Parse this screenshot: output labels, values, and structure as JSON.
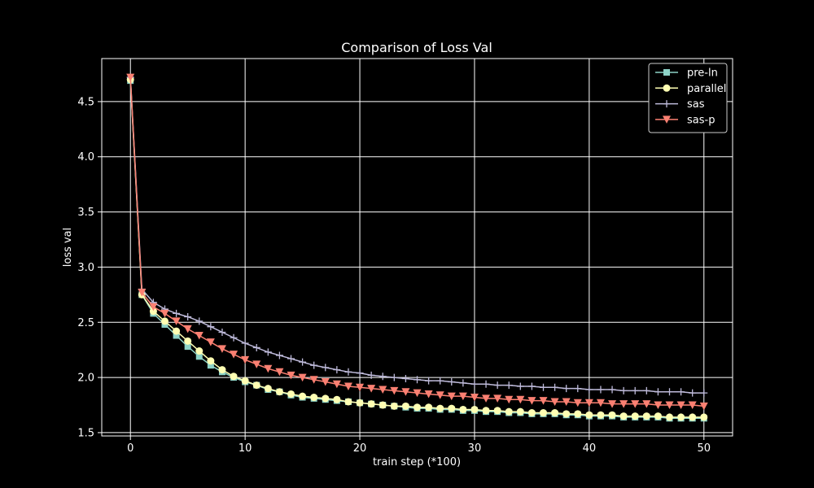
{
  "chart_data": {
    "type": "line",
    "title": "Comparison of Loss Val",
    "xlabel": "train step (*100)",
    "ylabel": "loss val",
    "xlim": [
      -2.5,
      52.5
    ],
    "ylim": [
      1.47,
      4.89
    ],
    "xticks": [
      0,
      10,
      20,
      30,
      40,
      50
    ],
    "yticks": [
      1.5,
      2.0,
      2.5,
      3.0,
      3.5,
      4.0,
      4.5
    ],
    "grid": true,
    "legend_position": "top-right",
    "x": [
      0,
      1,
      2,
      3,
      4,
      5,
      6,
      7,
      8,
      9,
      10,
      11,
      12,
      13,
      14,
      15,
      16,
      17,
      18,
      19,
      20,
      21,
      22,
      23,
      24,
      25,
      26,
      27,
      28,
      29,
      30,
      31,
      32,
      33,
      34,
      35,
      36,
      37,
      38,
      39,
      40,
      41,
      42,
      43,
      44,
      45,
      46,
      47,
      48,
      49,
      50
    ],
    "series": [
      {
        "name": "pre-ln",
        "color": "#8dd3c7",
        "marker": "square",
        "values": [
          4.69,
          2.75,
          2.58,
          2.48,
          2.38,
          2.28,
          2.19,
          2.11,
          2.05,
          2.0,
          1.96,
          1.93,
          1.89,
          1.87,
          1.84,
          1.82,
          1.81,
          1.8,
          1.79,
          1.78,
          1.77,
          1.76,
          1.75,
          1.74,
          1.73,
          1.72,
          1.72,
          1.71,
          1.71,
          1.7,
          1.7,
          1.69,
          1.69,
          1.68,
          1.68,
          1.67,
          1.67,
          1.67,
          1.66,
          1.66,
          1.65,
          1.65,
          1.65,
          1.64,
          1.64,
          1.64,
          1.64,
          1.63,
          1.63,
          1.63,
          1.63
        ]
      },
      {
        "name": "parallel",
        "color": "#ffffb3",
        "marker": "circle",
        "values": [
          4.7,
          2.75,
          2.6,
          2.51,
          2.42,
          2.33,
          2.24,
          2.15,
          2.07,
          2.01,
          1.97,
          1.93,
          1.9,
          1.87,
          1.85,
          1.83,
          1.82,
          1.81,
          1.8,
          1.78,
          1.77,
          1.76,
          1.75,
          1.74,
          1.74,
          1.73,
          1.73,
          1.72,
          1.72,
          1.71,
          1.71,
          1.7,
          1.7,
          1.69,
          1.69,
          1.68,
          1.68,
          1.68,
          1.67,
          1.67,
          1.66,
          1.66,
          1.66,
          1.65,
          1.65,
          1.65,
          1.65,
          1.64,
          1.64,
          1.64,
          1.64
        ]
      },
      {
        "name": "sas",
        "color": "#bebada",
        "marker": "plus",
        "values": [
          4.72,
          2.8,
          2.68,
          2.62,
          2.58,
          2.55,
          2.51,
          2.46,
          2.41,
          2.36,
          2.31,
          2.27,
          2.23,
          2.2,
          2.17,
          2.14,
          2.11,
          2.09,
          2.07,
          2.05,
          2.04,
          2.02,
          2.01,
          2.0,
          1.99,
          1.98,
          1.97,
          1.97,
          1.96,
          1.95,
          1.94,
          1.94,
          1.93,
          1.93,
          1.92,
          1.92,
          1.91,
          1.91,
          1.9,
          1.9,
          1.89,
          1.89,
          1.89,
          1.88,
          1.88,
          1.88,
          1.87,
          1.87,
          1.87,
          1.86,
          1.86
        ]
      },
      {
        "name": "sas-p",
        "color": "#fb8072",
        "marker": "triangle-down",
        "values": [
          4.72,
          2.77,
          2.64,
          2.58,
          2.51,
          2.44,
          2.38,
          2.32,
          2.26,
          2.21,
          2.16,
          2.12,
          2.08,
          2.05,
          2.02,
          2.0,
          1.98,
          1.96,
          1.94,
          1.92,
          1.91,
          1.9,
          1.89,
          1.88,
          1.87,
          1.86,
          1.85,
          1.84,
          1.83,
          1.83,
          1.82,
          1.81,
          1.81,
          1.8,
          1.8,
          1.79,
          1.79,
          1.78,
          1.78,
          1.77,
          1.77,
          1.77,
          1.76,
          1.76,
          1.76,
          1.76,
          1.75,
          1.75,
          1.75,
          1.75,
          1.74
        ]
      }
    ]
  },
  "colors": {
    "background": "#000000",
    "foreground": "#ffffff",
    "grid": "#ffffff"
  }
}
